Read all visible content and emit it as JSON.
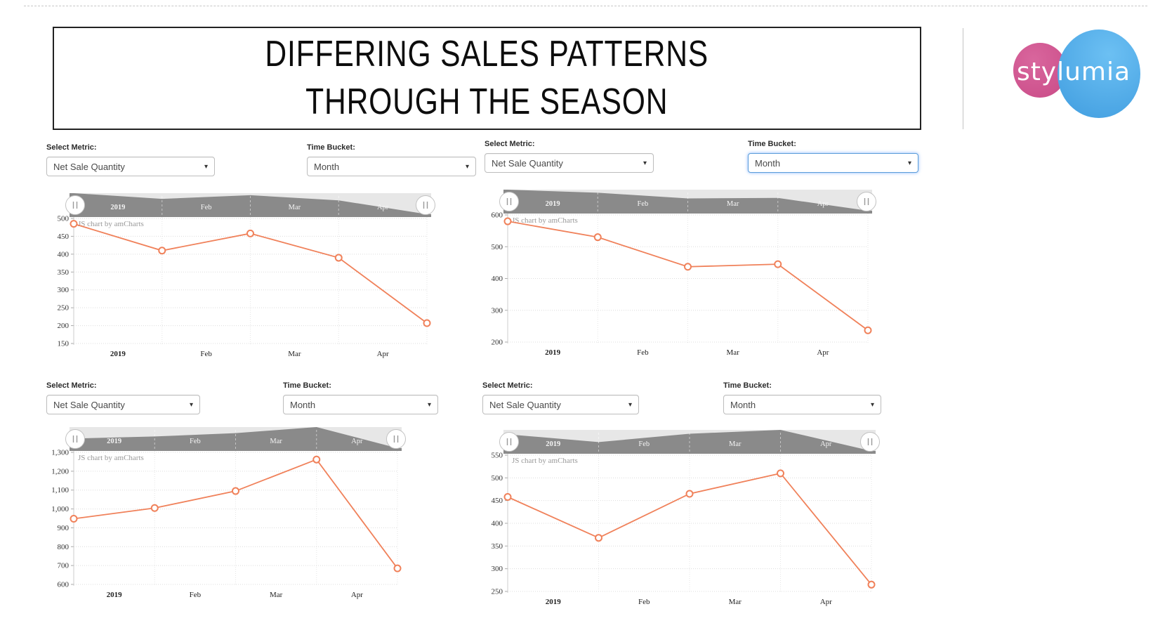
{
  "slide": {
    "title_line1": "DIFFERING SALES PATTERNS",
    "title_line2": "THROUGH THE SEASON"
  },
  "logo": {
    "text": "stylumia",
    "pink_color": "#c94b87",
    "blue_color": "#4fa8e8"
  },
  "icons": {
    "dropdown_arrow": "▾",
    "scrollbar_grip": "‖"
  },
  "colors": {
    "line": "#F0815A",
    "scrollbar_dark": "#8A8A8A",
    "scrollbar_bg": "#E7E7E7",
    "grid": "#DCDCDC",
    "axis_text": "#333333",
    "credit_text": "#999999"
  },
  "panels": [
    {
      "controls": {
        "metric_label": "Select Metric:",
        "metric_value": "Net Sale Quantity",
        "bucket_label": "Time Bucket:",
        "bucket_value": "Month"
      },
      "credit": "JS chart by amCharts"
    },
    {
      "controls": {
        "metric_label": "Select Metric:",
        "metric_value": "Net Sale Quantity",
        "bucket_label": "Time Bucket:",
        "bucket_value": "Month"
      },
      "credit": "JS chart by amCharts"
    },
    {
      "controls": {
        "metric_label": "Select Metric:",
        "metric_value": "Net Sale Quantity",
        "bucket_label": "Time Bucket:",
        "bucket_value": "Month"
      },
      "credit": "JS chart by amCharts"
    },
    {
      "controls": {
        "metric_label": "Select Metric:",
        "metric_value": "Net Sale Quantity",
        "bucket_label": "Time Bucket:",
        "bucket_value": "Month"
      },
      "credit": "JS chart by amCharts"
    }
  ],
  "chart_data": [
    {
      "id": "top-left",
      "type": "line",
      "x": [
        "2019-01",
        "2019-02",
        "2019-03",
        "2019-04",
        "2019-05"
      ],
      "x_axis_labels": [
        "2019",
        "Feb",
        "Mar",
        "Apr"
      ],
      "series": [
        {
          "name": "Net Sale Quantity",
          "values": [
            485,
            410,
            458,
            390,
            207
          ]
        }
      ],
      "ylim": [
        150,
        500
      ],
      "y_step": 50,
      "grid": true,
      "scrollbar": true,
      "line_color": "#F0815A"
    },
    {
      "id": "top-right",
      "type": "line",
      "x": [
        "2019-01",
        "2019-02",
        "2019-03",
        "2019-04",
        "2019-05"
      ],
      "x_axis_labels": [
        "2019",
        "Feb",
        "Mar",
        "Apr"
      ],
      "series": [
        {
          "name": "Net Sale Quantity",
          "values": [
            580,
            530,
            437,
            445,
            237
          ]
        }
      ],
      "ylim": [
        200,
        600
      ],
      "y_step": 100,
      "grid": true,
      "scrollbar": true,
      "line_color": "#F0815A"
    },
    {
      "id": "bottom-left",
      "type": "line",
      "x": [
        "2019-01",
        "2019-02",
        "2019-03",
        "2019-04",
        "2019-05"
      ],
      "x_axis_labels": [
        "2019",
        "Feb",
        "Mar",
        "Apr"
      ],
      "series": [
        {
          "name": "Net Sale Quantity",
          "values": [
            948,
            1005,
            1095,
            1262,
            685
          ]
        }
      ],
      "ylim": [
        600,
        1300
      ],
      "y_step": 100,
      "grid": true,
      "scrollbar": true,
      "line_color": "#F0815A"
    },
    {
      "id": "bottom-right",
      "type": "line",
      "x": [
        "2019-01",
        "2019-02",
        "2019-03",
        "2019-04",
        "2019-05"
      ],
      "x_axis_labels": [
        "2019",
        "Feb",
        "Mar",
        "Apr"
      ],
      "series": [
        {
          "name": "Net Sale Quantity",
          "values": [
            458,
            368,
            465,
            510,
            265
          ]
        }
      ],
      "ylim": [
        250,
        550
      ],
      "y_step": 50,
      "grid": true,
      "scrollbar": true,
      "line_color": "#F0815A"
    }
  ]
}
